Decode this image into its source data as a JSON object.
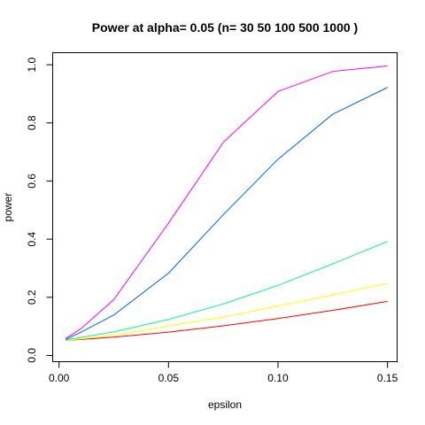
{
  "chart_data": {
    "type": "line",
    "title": "Power at alpha= 0.05  (n= 30 50 100 500 1000 )",
    "xlabel": "epsilon",
    "ylabel": "power",
    "xlim": [
      -0.0027,
      0.1542
    ],
    "ylim": [
      -0.02,
      1.04
    ],
    "xticks": [
      0.0,
      0.05,
      0.1,
      0.15
    ],
    "xtick_labels": [
      "0.00",
      "0.05",
      "0.10",
      "0.15"
    ],
    "yticks": [
      0.0,
      0.2,
      0.4,
      0.6,
      0.8,
      1.0
    ],
    "ytick_labels": [
      "0.0",
      "0.2",
      "0.4",
      "0.6",
      "0.8",
      "1.0"
    ],
    "grid": false,
    "legend": "none",
    "x": [
      0.003,
      0.01,
      0.025,
      0.05,
      0.075,
      0.1,
      0.125,
      0.15
    ],
    "series": [
      {
        "color": "#ff0000",
        "values": [
          0.052,
          0.055,
          0.063,
          0.08,
          0.102,
          0.127,
          0.155,
          0.186
        ]
      },
      {
        "color": "#ffff00",
        "values": [
          0.052,
          0.057,
          0.069,
          0.101,
          0.132,
          0.17,
          0.208,
          0.248
        ]
      },
      {
        "color": "#00ff80",
        "values": [
          0.054,
          0.062,
          0.081,
          0.124,
          0.177,
          0.241,
          0.315,
          0.392
        ]
      },
      {
        "color": "#0060ff",
        "values": [
          0.055,
          0.08,
          0.139,
          0.283,
          0.484,
          0.675,
          0.83,
          0.922
        ]
      },
      {
        "color": "#ff00ff",
        "values": [
          0.058,
          0.092,
          0.192,
          0.455,
          0.733,
          0.908,
          0.977,
          0.996
        ]
      }
    ]
  }
}
